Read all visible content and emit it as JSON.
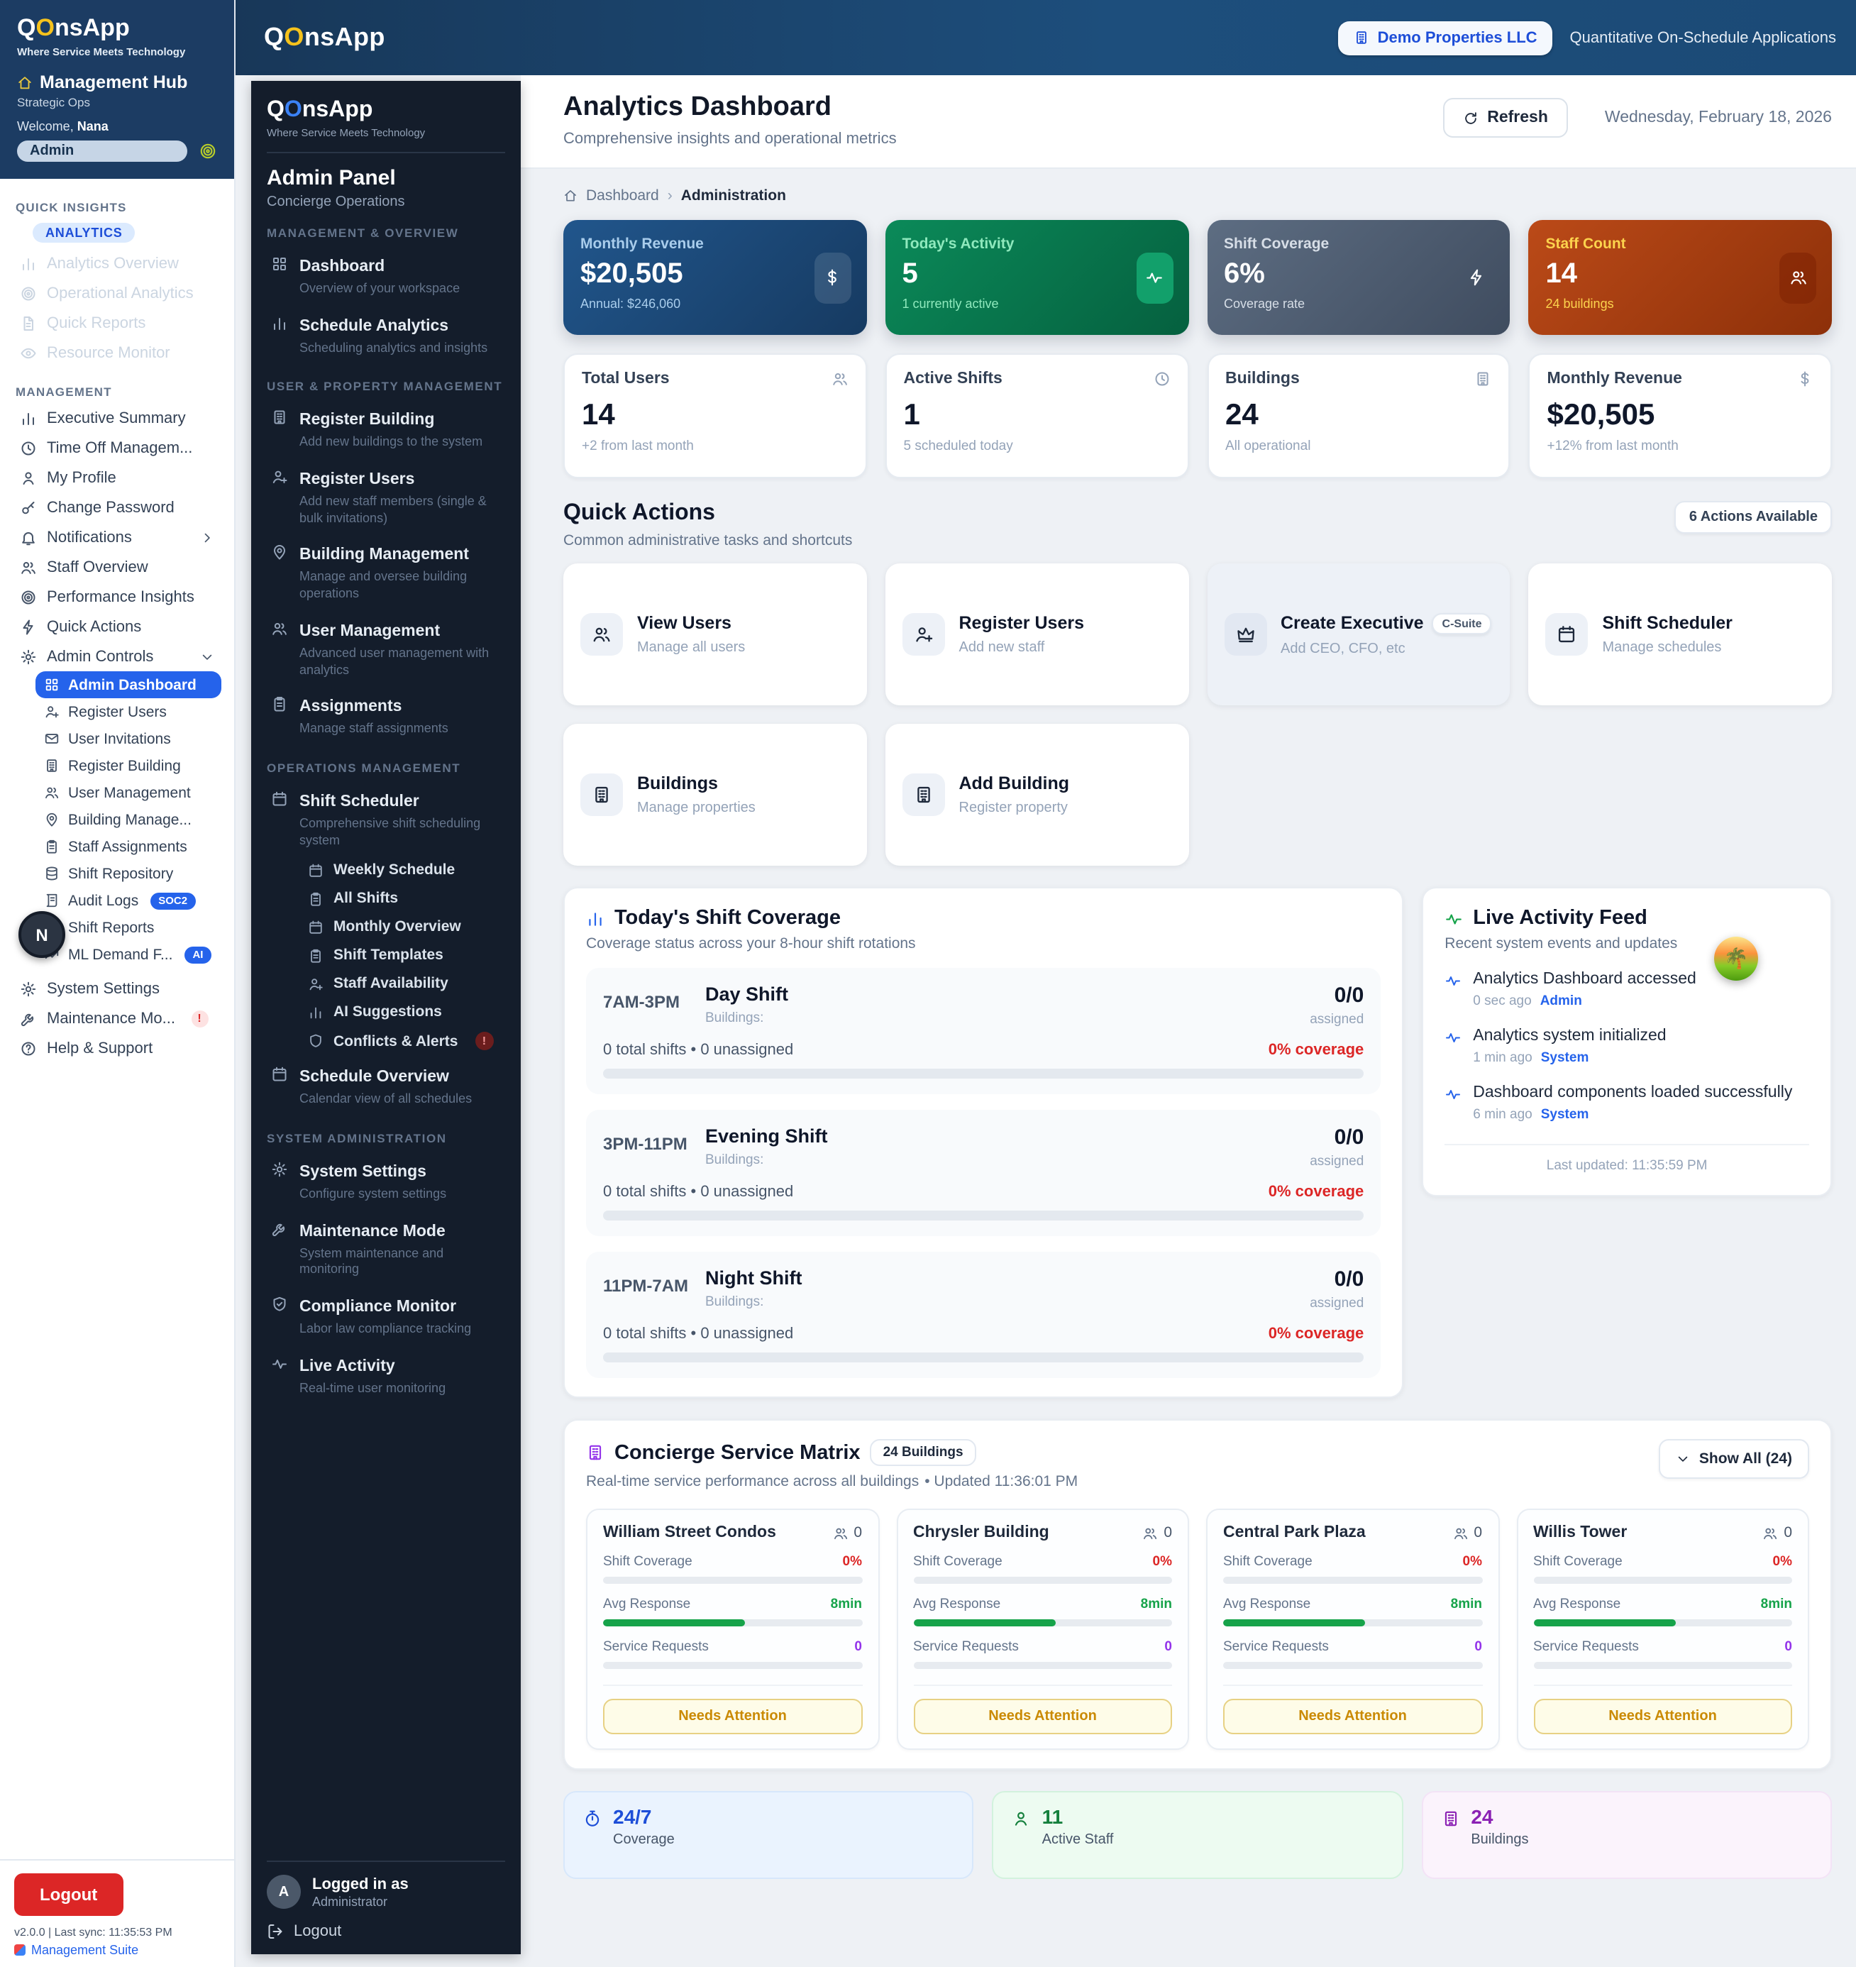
{
  "colors": {
    "accent": "#2563eb",
    "danger": "#dc2626",
    "success": "#16a34a",
    "purple": "#9333ea",
    "warning": "#ca8a04",
    "navy": "#1c3c63"
  },
  "topbar": {
    "logo_q": "Q",
    "logo_o": "O",
    "logo_rest": "nsApp",
    "org_button": "Demo Properties LLC",
    "app_name": "Quantitative On-Schedule Applications"
  },
  "left_sidebar": {
    "logo_q": "Q",
    "logo_o": "O",
    "logo_rest": "nsApp",
    "tagline": "Where Service Meets Technology",
    "hub_title": "Management Hub",
    "hub_subtitle": "Strategic Ops",
    "welcome_prefix": "Welcome,",
    "welcome_name": "Nana",
    "role_badge": "Admin",
    "quick_insights_label": "QUICK INSIGHTS",
    "quick_insights_badge": "ANALYTICS",
    "quick_insights_items": [
      {
        "label": "Analytics Overview",
        "icon": "chart",
        "disabled": true
      },
      {
        "label": "Operational Analytics",
        "icon": "target",
        "disabled": true
      },
      {
        "label": "Quick Reports",
        "icon": "doc",
        "disabled": true
      },
      {
        "label": "Resource Monitor",
        "icon": "eye",
        "disabled": true
      }
    ],
    "management_label": "MANAGEMENT",
    "management_items": [
      {
        "label": "Executive Summary",
        "icon": "chart"
      },
      {
        "label": "Time Off Managem...",
        "icon": "clock"
      },
      {
        "label": "My Profile",
        "icon": "person"
      },
      {
        "label": "Change Password",
        "icon": "key"
      },
      {
        "label": "Notifications",
        "icon": "bell",
        "chevron": "chev-right"
      },
      {
        "label": "Staff Overview",
        "icon": "people"
      },
      {
        "label": "Performance Insights",
        "icon": "target"
      },
      {
        "label": "Quick Actions",
        "icon": "bolt"
      },
      {
        "label": "Admin Controls",
        "icon": "gear",
        "chevron": "chev-down"
      }
    ],
    "admin_sub_items": [
      {
        "label": "Admin Dashboard",
        "icon": "grid",
        "active": true
      },
      {
        "label": "Register Users",
        "icon": "person-plus"
      },
      {
        "label": "User Invitations",
        "icon": "mail"
      },
      {
        "label": "Register Building",
        "icon": "building"
      },
      {
        "label": "User Management",
        "icon": "people"
      },
      {
        "label": "Building Manage...",
        "icon": "pin"
      },
      {
        "label": "Staff Assignments",
        "icon": "clipboard"
      },
      {
        "label": "Shift Repository",
        "icon": "db"
      },
      {
        "label": "Audit Logs",
        "icon": "scroll",
        "badge": "SOC2"
      },
      {
        "label": "Shift Reports",
        "icon": "doc"
      },
      {
        "label": "ML Demand F...",
        "icon": "trend",
        "badge": "AI"
      }
    ],
    "footer_items": [
      {
        "label": "System Settings",
        "icon": "gear"
      },
      {
        "label": "Maintenance Mo...",
        "icon": "wrench",
        "alert": "!"
      },
      {
        "label": "Help & Support",
        "icon": "help"
      }
    ],
    "avatar_overlay": "N",
    "logout_label": "Logout",
    "version_line": "v2.0.0 | Last sync: 11:35:53 PM",
    "suite_link": "Management Suite"
  },
  "admin_sidebar": {
    "logo_q": "Q",
    "logo_o": "O",
    "logo_rest": "nsApp",
    "tagline": "Where Service Meets Technology",
    "panel_title": "Admin Panel",
    "panel_subtitle": "Concierge Operations",
    "sections": [
      {
        "label": "MANAGEMENT & OVERVIEW",
        "items": [
          {
            "label": "Dashboard",
            "desc": "Overview of your workspace",
            "icon": "grid"
          },
          {
            "label": "Schedule Analytics",
            "desc": "Scheduling analytics and insights",
            "icon": "chart"
          }
        ]
      },
      {
        "label": "USER & PROPERTY MANAGEMENT",
        "items": [
          {
            "label": "Register Building",
            "desc": "Add new buildings to the system",
            "icon": "building"
          },
          {
            "label": "Register Users",
            "desc": "Add new staff members (single & bulk invitations)",
            "icon": "person-plus"
          },
          {
            "label": "Building Management",
            "desc": "Manage and oversee building operations",
            "icon": "pin"
          },
          {
            "label": "User Management",
            "desc": "Advanced user management with analytics",
            "icon": "people"
          },
          {
            "label": "Assignments",
            "desc": "Manage staff assignments",
            "icon": "clipboard"
          }
        ]
      },
      {
        "label": "OPERATIONS MANAGEMENT",
        "items": [
          {
            "label": "Shift Scheduler",
            "desc": "Comprehensive shift scheduling system",
            "icon": "calendar",
            "children": [
              {
                "label": "Weekly Schedule",
                "icon": "calendar"
              },
              {
                "label": "All Shifts",
                "icon": "clipboard"
              },
              {
                "label": "Monthly Overview",
                "icon": "calendar"
              },
              {
                "label": "Shift Templates",
                "icon": "clipboard"
              },
              {
                "label": "Staff Availability",
                "icon": "person-plus"
              },
              {
                "label": "AI Suggestions",
                "icon": "chart"
              },
              {
                "label": "Conflicts & Alerts",
                "icon": "shield",
                "alert": "!"
              }
            ]
          },
          {
            "label": "Schedule Overview",
            "desc": "Calendar view of all schedules",
            "icon": "calendar"
          }
        ]
      },
      {
        "label": "SYSTEM ADMINISTRATION",
        "items": [
          {
            "label": "System Settings",
            "desc": "Configure system settings",
            "icon": "gear"
          },
          {
            "label": "Maintenance Mode",
            "desc": "System maintenance and monitoring",
            "icon": "wrench"
          },
          {
            "label": "Compliance Monitor",
            "desc": "Labor law compliance tracking",
            "icon": "shield-check"
          },
          {
            "label": "Live Activity",
            "desc": "Real-time user monitoring",
            "icon": "pulse"
          }
        ]
      }
    ],
    "footer": {
      "avatar": "A",
      "logged_in_as": "Logged in as",
      "role": "Administrator",
      "logout": "Logout"
    }
  },
  "header": {
    "title": "Analytics Dashboard",
    "subtitle": "Comprehensive insights and operational metrics",
    "refresh_label": "Refresh",
    "date": "Wednesday, February 18, 2026"
  },
  "breadcrumb": {
    "home": "Dashboard",
    "sep": "›",
    "current": "Administration"
  },
  "stat_cards": [
    {
      "label": "Monthly Revenue",
      "value": "$20,505",
      "sub": "Annual: $246,060",
      "icon": "dollar",
      "theme": "blue"
    },
    {
      "label": "Today's Activity",
      "value": "5",
      "sub": "1 currently active",
      "icon": "pulse",
      "theme": "green"
    },
    {
      "label": "Shift Coverage",
      "value": "6%",
      "sub": "Coverage rate",
      "icon": "bolt",
      "theme": "slate"
    },
    {
      "label": "Staff Count",
      "value": "14",
      "sub": "24 buildings",
      "icon": "people",
      "theme": "rust"
    }
  ],
  "metric_cards": [
    {
      "label": "Total Users",
      "value": "14",
      "sub": "+2 from last month",
      "icon": "people"
    },
    {
      "label": "Active Shifts",
      "value": "1",
      "sub": "5 scheduled today",
      "icon": "clock"
    },
    {
      "label": "Buildings",
      "value": "24",
      "sub": "All operational",
      "icon": "building"
    },
    {
      "label": "Monthly Revenue",
      "value": "$20,505",
      "sub": "+12% from last month",
      "icon": "dollar"
    }
  ],
  "quick_actions": {
    "title": "Quick Actions",
    "subtitle": "Common administrative tasks and shortcuts",
    "count_badge": "6 Actions Available",
    "actions": [
      {
        "label": "View Users",
        "desc": "Manage all users",
        "icon": "people"
      },
      {
        "label": "Register Users",
        "desc": "Add new staff",
        "icon": "person-plus"
      },
      {
        "label": "Create Executive",
        "desc": "Add CEO, CFO, etc",
        "icon": "crown",
        "badge": "C-Suite",
        "highlight": true
      },
      {
        "label": "Shift Scheduler",
        "desc": "Manage schedules",
        "icon": "calendar"
      },
      {
        "label": "Buildings",
        "desc": "Manage properties",
        "icon": "building"
      },
      {
        "label": "Add Building",
        "desc": "Register property",
        "icon": "building"
      }
    ]
  },
  "shift_coverage": {
    "title": "Today's Shift Coverage",
    "subtitle": "Coverage status across your 8-hour shift rotations",
    "shifts": [
      {
        "time": "7AM-3PM",
        "name": "Day Shift",
        "buildings_label": "Buildings:",
        "assigned": "0/0",
        "assigned_label": "assigned",
        "totals": "0 total shifts • 0 unassigned",
        "coverage": "0% coverage",
        "progress": 0
      },
      {
        "time": "3PM-11PM",
        "name": "Evening Shift",
        "buildings_label": "Buildings:",
        "assigned": "0/0",
        "assigned_label": "assigned",
        "totals": "0 total shifts • 0 unassigned",
        "coverage": "0% coverage",
        "progress": 0
      },
      {
        "time": "11PM-7AM",
        "name": "Night Shift",
        "buildings_label": "Buildings:",
        "assigned": "0/0",
        "assigned_label": "assigned",
        "totals": "0 total shifts • 0 unassigned",
        "coverage": "0% coverage",
        "progress": 0
      }
    ]
  },
  "activity_feed": {
    "title": "Live Activity Feed",
    "subtitle": "Recent system events and updates",
    "items": [
      {
        "text": "Analytics Dashboard accessed",
        "time": "0 sec ago",
        "actor": "Admin"
      },
      {
        "text": "Analytics system initialized",
        "time": "1 min ago",
        "actor": "System"
      },
      {
        "text": "Dashboard components loaded successfully",
        "time": "6 min ago",
        "actor": "System"
      }
    ],
    "last_updated": "Last updated: 11:35:59 PM"
  },
  "service_matrix": {
    "title": "Concierge Service Matrix",
    "count_badge": "24 Buildings",
    "subtitle": "Real-time service performance across all buildings",
    "updated": "• Updated 11:36:01 PM",
    "show_all": "Show All (24)",
    "row_labels": {
      "coverage": "Shift Coverage",
      "response": "Avg Response",
      "requests": "Service Requests"
    },
    "status": "Needs Attention",
    "buildings": [
      {
        "name": "William Street Condos",
        "staff": "0",
        "coverage": "0%",
        "response": "8min",
        "requests": "0",
        "response_pct": 55
      },
      {
        "name": "Chrysler Building",
        "staff": "0",
        "coverage": "0%",
        "response": "8min",
        "requests": "0",
        "response_pct": 55
      },
      {
        "name": "Central Park Plaza",
        "staff": "0",
        "coverage": "0%",
        "response": "8min",
        "requests": "0",
        "response_pct": 55
      },
      {
        "name": "Willis Tower",
        "staff": "0",
        "coverage": "0%",
        "response": "8min",
        "requests": "0",
        "response_pct": 55
      }
    ]
  },
  "footer_stats": [
    {
      "value": "24/7",
      "label": "Coverage",
      "icon": "stopwatch",
      "theme": "fblue"
    },
    {
      "value": "11",
      "label": "Active Staff",
      "icon": "person",
      "theme": "fgreen"
    },
    {
      "value": "24",
      "label": "Buildings",
      "icon": "building",
      "theme": "fpurple"
    }
  ]
}
